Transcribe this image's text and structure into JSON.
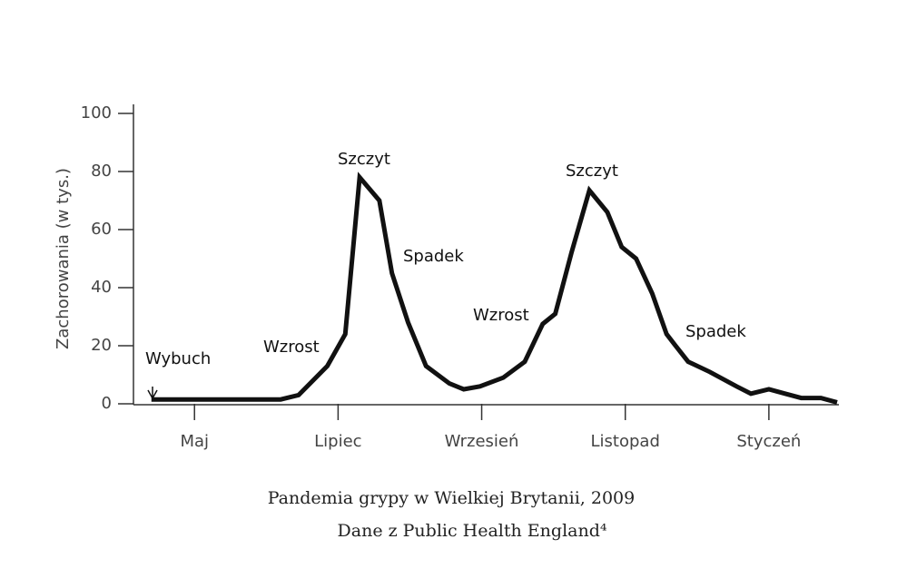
{
  "chart_data": {
    "type": "line",
    "title": "Pandemia grypy w Wielkiej Brytanii, 2009",
    "subtitle": "Dane z Public Health England⁴",
    "y_label": "Zachorowania (w tys.)",
    "x": [
      -2.4,
      4.8,
      5.8,
      7.4,
      8.4,
      9.2,
      10.3,
      11.0,
      11.9,
      12.9,
      14.2,
      15.0,
      15.9,
      17.2,
      18.4,
      19.4,
      20.1,
      21.0,
      22.0,
      23.0,
      23.8,
      24.6,
      25.5,
      26.3,
      26.8,
      27.5,
      28.7,
      30.2,
      31.0,
      32.0,
      32.9,
      33.8,
      34.9,
      35.8
    ],
    "values": [
      1.5,
      1.5,
      3,
      13,
      24,
      78,
      70,
      45,
      28,
      13,
      7,
      5,
      6,
      9,
      14.5,
      27.5,
      31,
      52,
      73.5,
      66,
      54,
      50,
      38,
      24,
      20,
      14.5,
      11,
      6,
      3.5,
      5,
      3.5,
      2,
      2,
      0.5
    ],
    "color": "#111111",
    "xlim": [
      -3.4,
      35.8
    ],
    "xticks": [
      {
        "value": 0,
        "label": "Maj"
      },
      {
        "value": 8,
        "label": "Lipiec"
      },
      {
        "value": 16,
        "label": "Wrzesień"
      },
      {
        "value": 24,
        "label": "Listopad"
      },
      {
        "value": 32,
        "label": "Styczeń"
      }
    ],
    "ylim": [
      0,
      100
    ],
    "yticks": [
      0,
      20,
      40,
      60,
      80,
      100
    ],
    "annotations": [
      "Wybuch",
      "Wzrost",
      "Szczyt",
      "Spadek",
      "Wzrost",
      "Szczyt",
      "Spadek"
    ]
  }
}
